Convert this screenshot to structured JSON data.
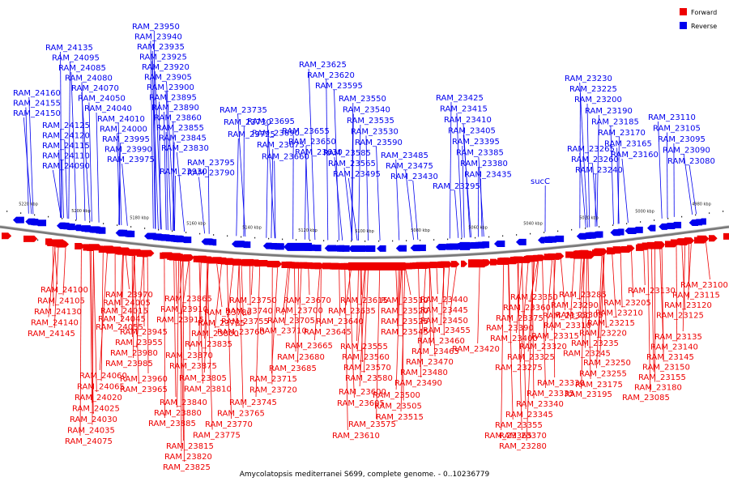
{
  "caption": "Amycolatopsis mediterranei S699, complete genome. - 0..10236779",
  "legend": [
    {
      "label": "Forward",
      "color": "#ee0000"
    },
    {
      "label": "Reverse",
      "color": "#0000ee"
    }
  ],
  "axis_ticks": [
    "5220 kbp",
    "5200 kbp",
    "5180 kbp",
    "5160 kbp",
    "5140 kbp",
    "5120 kbp",
    "5100 kbp",
    "5080 kbp",
    "5060 kbp",
    "5040 kbp",
    "5020 kbp",
    "5000 kbp",
    "4980 kbp"
  ],
  "reverse_genes": [
    "RAM_24160",
    "RAM_24155",
    "RAM_24150",
    "RAM_24135",
    "RAM_24095",
    "RAM_24085",
    "RAM_24080",
    "RAM_24070",
    "RAM_24050",
    "RAM_24040",
    "RAM_24125",
    "RAM_24120",
    "RAM_24115",
    "RAM_24110",
    "RAM_24090",
    "RAM_24010",
    "RAM_24000",
    "RAM_23995",
    "RAM_23990",
    "RAM_23975",
    "RAM_23950",
    "RAM_23940",
    "RAM_23935",
    "RAM_23925",
    "RAM_23920",
    "RAM_23905",
    "RAM_23900",
    "RAM_23895",
    "RAM_23890",
    "RAM_23860",
    "RAM_23855",
    "RAM_23845",
    "RAM_23830",
    "RAM_23930",
    "RAM_23795",
    "RAM_23790",
    "RAM_23735",
    "RAM_23730",
    "RAM_23725",
    "RAM_23695",
    "RAM_23690",
    "RAM_23675",
    "RAM_23660",
    "RAM_23655",
    "RAM_23650",
    "RAM_23630",
    "RAM_23625",
    "RAM_23620",
    "RAM_23595",
    "RAM_23550",
    "RAM_23540",
    "RAM_23535",
    "RAM_23530",
    "RAM_23590",
    "RAM_23585",
    "RAM_23565",
    "RAM_23495",
    "RAM_23485",
    "RAM_23475",
    "RAM_23430",
    "RAM_23425",
    "RAM_23415",
    "RAM_23410",
    "RAM_23405",
    "RAM_23395",
    "RAM_23385",
    "RAM_23380",
    "RAM_23435",
    "RAM_23295",
    "sucC",
    "RAM_23265",
    "RAM_23260",
    "RAM_23240",
    "RAM_23230",
    "RAM_23225",
    "RAM_23200",
    "RAM_23190",
    "RAM_23185",
    "RAM_23170",
    "RAM_23165",
    "RAM_23160",
    "RAM_23110",
    "RAM_23105",
    "RAM_23095",
    "RAM_23090",
    "RAM_23080"
  ],
  "forward_genes": [
    "RAM_24100",
    "RAM_24105",
    "RAM_24130",
    "RAM_24140",
    "RAM_24145",
    "RAM_23970",
    "RAM_24005",
    "RAM_24015",
    "RAM_24045",
    "RAM_24055",
    "RAM_23945",
    "RAM_23955",
    "RAM_23980",
    "RAM_23985",
    "RAM_23960",
    "RAM_23965",
    "RAM_24060",
    "RAM_24065",
    "RAM_24020",
    "RAM_24025",
    "RAM_24030",
    "RAM_24035",
    "RAM_24075",
    "RAM_23865",
    "RAM_23910",
    "RAM_23915",
    "RAM_23780",
    "RAM_23785",
    "RAM_23800",
    "RAM_23835",
    "RAM_23870",
    "RAM_23875",
    "RAM_23805",
    "RAM_23810",
    "RAM_23840",
    "RAM_23880",
    "RAM_23885",
    "RAM_23815",
    "RAM_23820",
    "RAM_23825",
    "RAM_23750",
    "RAM_23740",
    "RAM_23755",
    "RAM_23760",
    "RAM_23715",
    "RAM_23720",
    "RAM_23745",
    "RAM_23765",
    "RAM_23770",
    "RAM_23775",
    "RAM_23670",
    "RAM_23700",
    "RAM_23705",
    "RAM_23710",
    "RAM_23665",
    "RAM_23680",
    "RAM_23685",
    "RAM_23615",
    "RAM_23635",
    "RAM_23640",
    "RAM_23645",
    "RAM_23555",
    "RAM_23560",
    "RAM_23570",
    "RAM_23580",
    "RAM_23600",
    "RAM_23605",
    "RAM_23575",
    "RAM_23610",
    "RAM_23510",
    "RAM_23520",
    "RAM_23525",
    "RAM_23545",
    "RAM_23500",
    "RAM_23505",
    "RAM_23515",
    "RAM_23440",
    "RAM_23445",
    "RAM_23450",
    "RAM_23455",
    "RAM_23460",
    "RAM_23465",
    "RAM_23470",
    "RAM_23480",
    "RAM_23490",
    "RAM_23420",
    "RAM_23390",
    "RAM_23400",
    "RAM_23350",
    "RAM_23360",
    "RAM_23375",
    "RAM_23330",
    "RAM_23335",
    "RAM_23340",
    "RAM_23345",
    "RAM_23355",
    "RAM_23365",
    "RAM_23370",
    "RAM_23280",
    "RAM_23285",
    "RAM_23290",
    "RAM_23300",
    "RAM_23305",
    "RAM_23310",
    "RAM_23315",
    "RAM_23320",
    "RAM_23325",
    "RAM_23275",
    "RAM_23195",
    "RAM_23205",
    "RAM_23210",
    "RAM_23215",
    "RAM_23220",
    "RAM_23235",
    "RAM_23245",
    "RAM_23250",
    "RAM_23255",
    "RAM_23175",
    "RAM_23130",
    "RAM_23135",
    "RAM_23140",
    "RAM_23145",
    "RAM_23150",
    "RAM_23155",
    "RAM_23180",
    "RAM_23085",
    "RAM_23100",
    "RAM_23115",
    "RAM_23120",
    "RAM_23125"
  ]
}
